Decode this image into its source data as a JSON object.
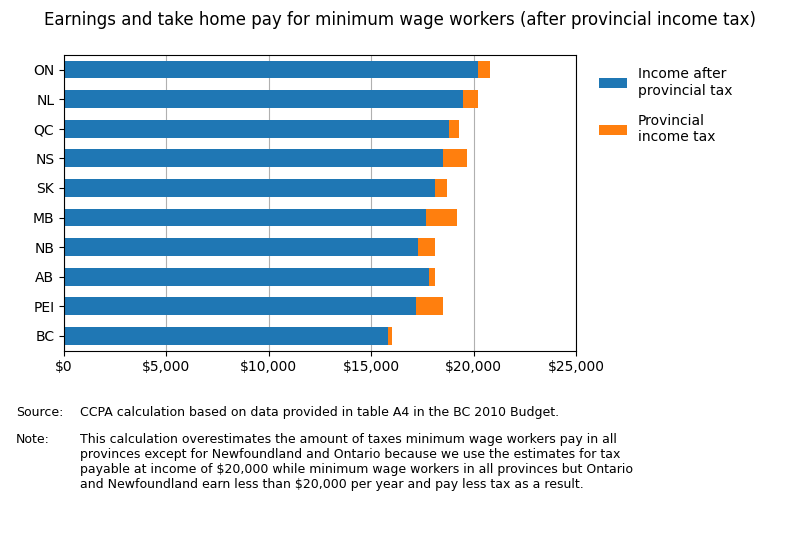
{
  "chart_data": {
    "type": "bar",
    "orientation": "horizontal",
    "stacked": true,
    "title": "Earnings and take home pay for minimum wage workers (after provincial income tax)",
    "categories": [
      "ON",
      "NL",
      "QC",
      "NS",
      "SK",
      "MB",
      "NB",
      "AB",
      "PEI",
      "BC"
    ],
    "series": [
      {
        "name": "Income after\nprovincial tax",
        "values": [
          20200,
          19500,
          18800,
          18500,
          18100,
          17700,
          17300,
          17800,
          17200,
          15800
        ]
      },
      {
        "name": "Provincial\nincome tax",
        "values": [
          600,
          700,
          500,
          1200,
          600,
          1500,
          800,
          300,
          1300,
          200
        ]
      }
    ],
    "xlim": [
      0,
      25000
    ],
    "xticks": [
      {
        "value": 0,
        "label": "$0"
      },
      {
        "value": 5000,
        "label": "$5,000"
      },
      {
        "value": 10000,
        "label": "$10,000"
      },
      {
        "value": 15000,
        "label": "$15,000"
      },
      {
        "value": 20000,
        "label": "$20,000"
      },
      {
        "value": 25000,
        "label": "$25,000"
      }
    ],
    "grid": true,
    "legend": "upper left",
    "annotations": [
      "Source:",
      "CCPA calculation based on data provided in table A4 in the BC 2010 Budget.",
      "Note:",
      "This calculation overestimates the amount of taxes minimum wage workers pay in all\nprovinces except for Newfoundland and Ontario because we use the estimates for tax\npayable at income of $20,000 while minimum wage workers in all provinces but Ontario\nand Newfoundland earn less than $20,000 per year and pay less tax as a result."
    ]
  }
}
